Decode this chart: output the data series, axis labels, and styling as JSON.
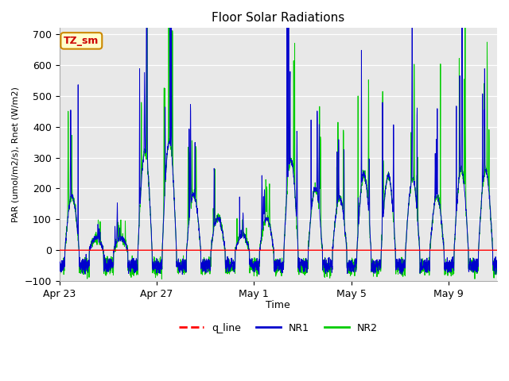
{
  "title": "Floor Solar Radiations",
  "ylabel": "PAR (umol/m2/s), Rnet (W/m2)",
  "xlabel": "Time",
  "ylim": [
    -100,
    720
  ],
  "yticks": [
    -100,
    0,
    100,
    200,
    300,
    400,
    500,
    600,
    700
  ],
  "xtick_labels": [
    "Apr 23",
    "Apr 27",
    "May 1",
    "May 5",
    "May 9"
  ],
  "xtick_positions": [
    0,
    4,
    8,
    12,
    16
  ],
  "legend_labels": [
    "q_line",
    "NR1",
    "NR2"
  ],
  "legend_colors": [
    "#ff0000",
    "#0000cc",
    "#00cc00"
  ],
  "annotation_text": "TZ_sm",
  "annotation_bg": "#ffffcc",
  "annotation_border": "#cc8800",
  "annotation_text_color": "#cc0000",
  "plot_bg_color": "#e8e8e8",
  "n_days": 18,
  "pts_per_day": 144,
  "night_base": -50,
  "day_peaks": [
    350,
    80,
    80,
    640,
    700,
    360,
    210,
    100,
    205,
    585,
    400,
    340,
    490,
    485,
    460,
    350,
    520,
    520
  ],
  "seed": 10
}
